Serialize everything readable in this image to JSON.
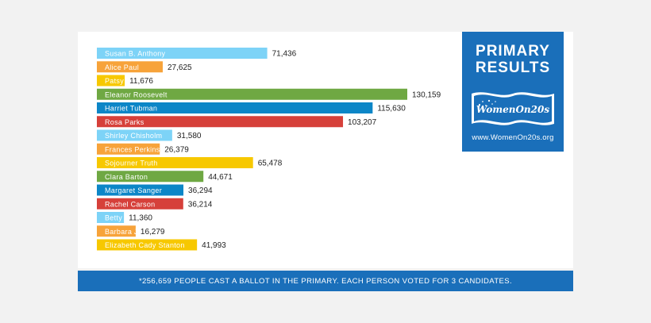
{
  "chart_data": {
    "type": "bar",
    "orientation": "horizontal",
    "categories": [
      "Susan B. Anthony",
      "Alice Paul",
      "Patsy Mink",
      "Eleanor Roosevelt",
      "Harriet Tubman",
      "Rosa Parks",
      "Shirley Chisholm",
      "Frances Perkins",
      "Sojourner Truth",
      "Clara Barton",
      "Margaret Sanger",
      "Rachel Carson",
      "Betty Friedan",
      "Barbara Jordan",
      "Elizabeth Cady Stanton"
    ],
    "values": [
      71436,
      27625,
      11676,
      130159,
      115630,
      103207,
      31580,
      26379,
      65478,
      44671,
      36294,
      36214,
      11360,
      16279,
      41993
    ],
    "value_labels": [
      "71,436",
      "27,625",
      "11,676",
      "130,159",
      "115,630",
      "103,207",
      "31,580",
      "26,379",
      "65,478",
      "44,671",
      "36,294",
      "36,214",
      "11,360",
      "16,279",
      "41,993"
    ],
    "bar_colors": [
      "#7dd3f7",
      "#f7a33a",
      "#f7c800",
      "#6fa843",
      "#0c86c7",
      "#d6403a",
      "#7dd3f7",
      "#f7a33a",
      "#f7c800",
      "#6fa843",
      "#0c86c7",
      "#d6403a",
      "#7dd3f7",
      "#f7a33a",
      "#f7c800"
    ],
    "xlim": [
      0,
      130159
    ]
  },
  "results": {
    "title_line1": "PRIMARY",
    "title_line2": "RESULTS",
    "flag_text": "WomenOn20s",
    "url": "www.WomenOn20s.org"
  },
  "footer": {
    "note": "*256,659 PEOPLE CAST A BALLOT IN THE PRIMARY. EACH PERSON VOTED FOR 3 CANDIDATES."
  },
  "colors": {
    "brand_blue": "#1a6fba"
  }
}
